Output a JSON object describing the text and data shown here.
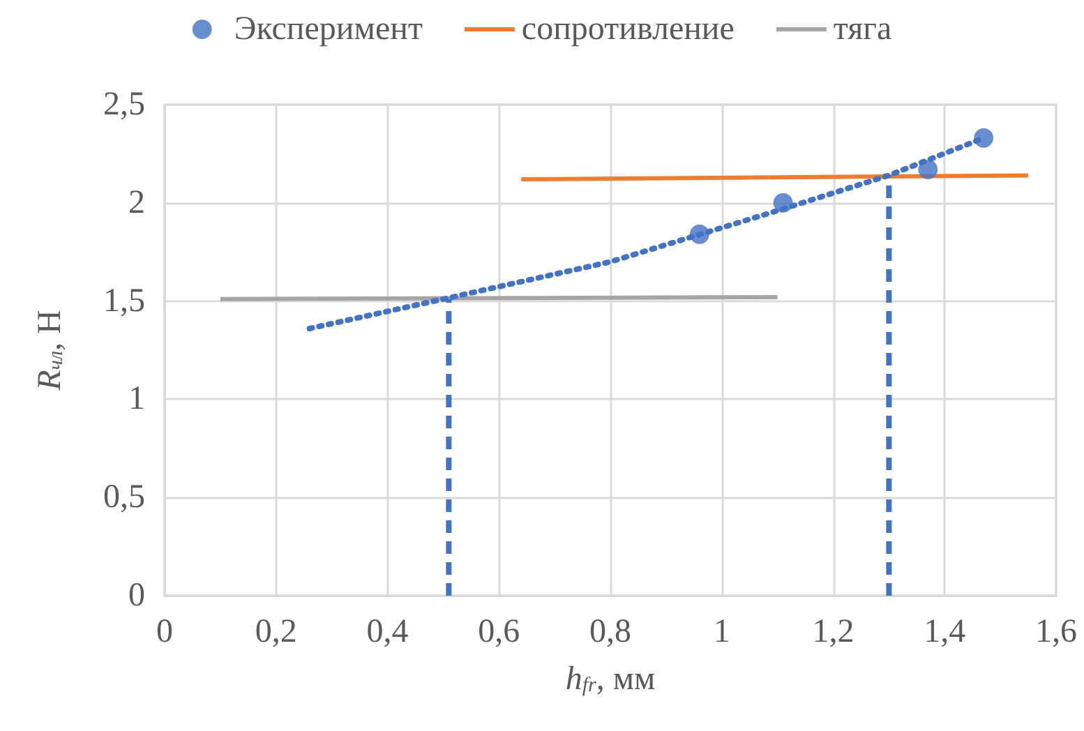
{
  "chart_data": {
    "type": "scatter",
    "xlabel": "h$_{fr}$, мм",
    "ylabel": "R$_{чл}$, Н",
    "xlim": [
      0,
      1.6
    ],
    "xticks": [
      0,
      {
        "value": 0.2,
        "label": "0,2"
      },
      {
        "value": 0.4,
        "label": "0,4"
      },
      {
        "value": 0.6,
        "label": "0,6"
      },
      {
        "value": 0.8,
        "label": "0,8"
      },
      1,
      {
        "value": 1.2,
        "label": "1,2"
      },
      {
        "value": 1.4,
        "label": "1,4"
      },
      {
        "value": 1.6,
        "label": "1,6"
      }
    ],
    "ylim": [
      0,
      2.5
    ],
    "yticks": [
      0,
      {
        "value": 0.5,
        "label": "0,5"
      },
      1,
      {
        "value": 1.5,
        "label": "1,5"
      },
      2,
      {
        "value": 2.5,
        "label": "2,5"
      }
    ],
    "grid": true,
    "legend": "top",
    "series": [
      {
        "name": "Эксперимент",
        "marker": "circle",
        "color": "#4472c4",
        "x": [
          0.96,
          1.11,
          1.37,
          1.47
        ],
        "values": [
          1.84,
          2.0,
          2.17,
          2.33
        ]
      },
      {
        "name": "сопротивление",
        "type": "line",
        "marker": "none",
        "line_style": "solid",
        "color": "#ed7d31",
        "x": [
          0.64,
          1.55
        ],
        "values": [
          2.12,
          2.14
        ]
      },
      {
        "name": "тяга",
        "type": "line",
        "marker": "none",
        "line_style": "solid",
        "color": "#a5a5a5",
        "x": [
          0.1,
          1.1
        ],
        "values": [
          1.51,
          1.52
        ]
      },
      {
        "type": "line",
        "marker": "none",
        "line_style": "dotted",
        "color": "#4472c4",
        "x": [
          0.26,
          0.5,
          0.8,
          1.1,
          1.3,
          1.47
        ],
        "values": [
          1.36,
          1.51,
          1.7,
          1.96,
          2.14,
          2.33
        ]
      },
      {
        "type": "line",
        "marker": "none",
        "line_style": "dashed",
        "color": "#4472c4",
        "x": [
          0.51,
          0.51
        ],
        "values": [
          0,
          1.51
        ]
      },
      {
        "type": "line",
        "marker": "none",
        "line_style": "dashed",
        "color": "#4472c4",
        "x": [
          1.3,
          1.3
        ],
        "values": [
          0,
          2.14
        ]
      }
    ]
  }
}
